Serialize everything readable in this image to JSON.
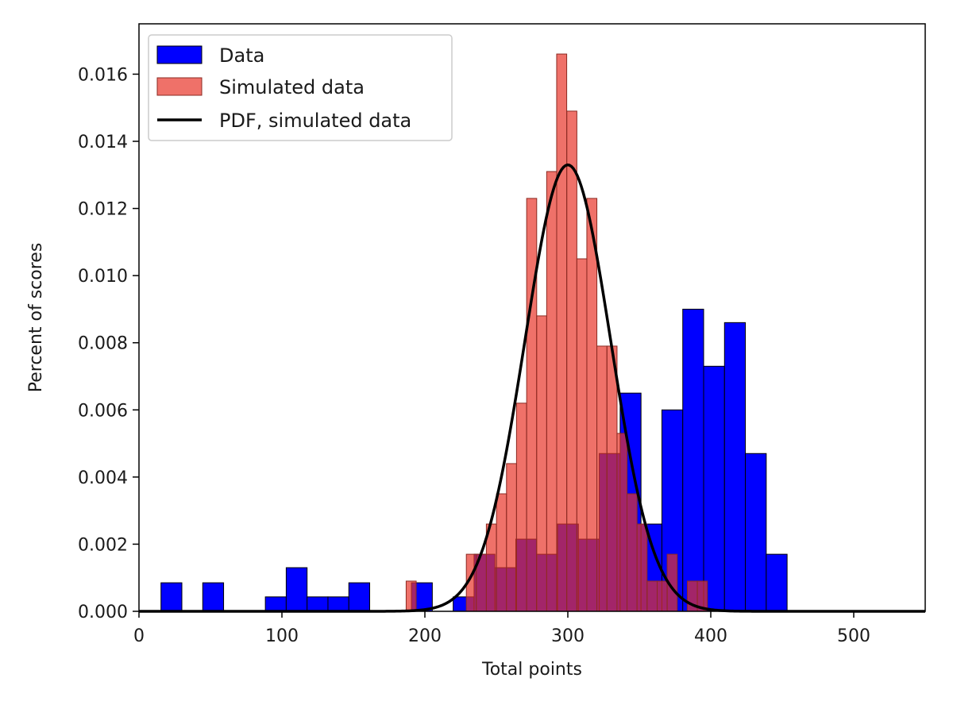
{
  "chart_data": {
    "type": "bar",
    "title": "",
    "xlabel": "Total points",
    "ylabel": "Percent of scores",
    "xlim": [
      0,
      550
    ],
    "ylim": [
      0,
      0.0175
    ],
    "xticks": [
      0,
      100,
      200,
      300,
      400,
      500
    ],
    "xtick_labels": [
      "0",
      "100",
      "200",
      "300",
      "400",
      "500"
    ],
    "yticks": [
      0.0,
      0.002,
      0.004,
      0.006,
      0.008,
      0.01,
      0.012,
      0.014,
      0.016
    ],
    "ytick_labels": [
      "0.000",
      "0.002",
      "0.004",
      "0.006",
      "0.008",
      "0.010",
      "0.012",
      "0.014",
      "0.016"
    ],
    "grid": false,
    "legend_position": "top-left",
    "series": [
      {
        "name": "Data",
        "kind": "histogram",
        "color": "#0000ff",
        "alpha": 1.0,
        "bin_width": 14.6,
        "bins": [
          {
            "x0": 15.4,
            "value": 0.00085
          },
          {
            "x0": 44.6,
            "value": 0.00085
          },
          {
            "x0": 88.4,
            "value": 0.00043
          },
          {
            "x0": 103.0,
            "value": 0.0013
          },
          {
            "x0": 117.6,
            "value": 0.00043
          },
          {
            "x0": 132.2,
            "value": 0.00043
          },
          {
            "x0": 146.8,
            "value": 0.00085
          },
          {
            "x0": 190.6,
            "value": 0.00085
          },
          {
            "x0": 219.8,
            "value": 0.00043
          },
          {
            "x0": 234.4,
            "value": 0.0017
          },
          {
            "x0": 249.0,
            "value": 0.0013
          },
          {
            "x0": 263.6,
            "value": 0.00215
          },
          {
            "x0": 278.2,
            "value": 0.0017
          },
          {
            "x0": 292.8,
            "value": 0.0026
          },
          {
            "x0": 307.4,
            "value": 0.00215
          },
          {
            "x0": 322.0,
            "value": 0.0047
          },
          {
            "x0": 336.6,
            "value": 0.0065
          },
          {
            "x0": 351.2,
            "value": 0.0026
          },
          {
            "x0": 365.8,
            "value": 0.006
          },
          {
            "x0": 380.4,
            "value": 0.009
          },
          {
            "x0": 395.0,
            "value": 0.0073
          },
          {
            "x0": 409.6,
            "value": 0.0086
          },
          {
            "x0": 424.2,
            "value": 0.0047
          },
          {
            "x0": 438.8,
            "value": 0.0017
          }
        ]
      },
      {
        "name": "Simulated data",
        "kind": "histogram",
        "color": "#e8352a",
        "alpha": 0.7,
        "bin_width": 7.02,
        "bins": [
          {
            "x0": 186.9,
            "value": 0.0009
          },
          {
            "x0": 229.0,
            "value": 0.0017
          },
          {
            "x0": 236.0,
            "value": 0.0017
          },
          {
            "x0": 243.0,
            "value": 0.0026
          },
          {
            "x0": 250.1,
            "value": 0.0035
          },
          {
            "x0": 257.1,
            "value": 0.0044
          },
          {
            "x0": 264.1,
            "value": 0.0062
          },
          {
            "x0": 271.2,
            "value": 0.0123
          },
          {
            "x0": 278.2,
            "value": 0.0088
          },
          {
            "x0": 285.2,
            "value": 0.0131
          },
          {
            "x0": 292.2,
            "value": 0.0166
          },
          {
            "x0": 299.3,
            "value": 0.0149
          },
          {
            "x0": 306.3,
            "value": 0.0105
          },
          {
            "x0": 313.3,
            "value": 0.0123
          },
          {
            "x0": 320.3,
            "value": 0.0079
          },
          {
            "x0": 327.4,
            "value": 0.0079
          },
          {
            "x0": 334.4,
            "value": 0.0053
          },
          {
            "x0": 341.4,
            "value": 0.0035
          },
          {
            "x0": 348.4,
            "value": 0.0026
          },
          {
            "x0": 355.5,
            "value": 0.0009
          },
          {
            "x0": 362.5,
            "value": 0.0009
          },
          {
            "x0": 369.5,
            "value": 0.0017
          },
          {
            "x0": 383.6,
            "value": 0.0009
          },
          {
            "x0": 390.6,
            "value": 0.0009
          }
        ]
      },
      {
        "name": "PDF, simulated data",
        "kind": "line",
        "color": "#000000",
        "distribution": "normal",
        "mean": 300,
        "std": 30,
        "x_range": [
          0,
          550
        ]
      }
    ]
  }
}
